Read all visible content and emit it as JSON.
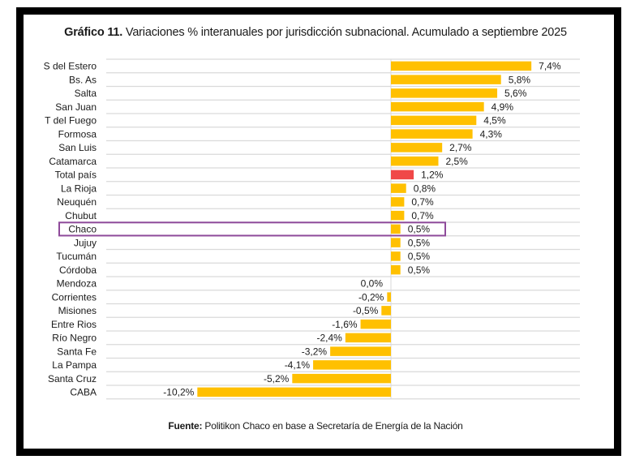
{
  "chart_data": {
    "type": "bar",
    "orientation": "horizontal",
    "title_bold": "Gráfico 11.",
    "title_rest": " Variaciones % interanuales por jurisdicción subnacional. Acumulado a septiembre 2025",
    "xlabel": "",
    "ylabel": "",
    "xlim": [
      -10.2,
      9.9
    ],
    "grid": true,
    "categories": [
      "S del Estero",
      "Bs. As",
      "Salta",
      "San Juan",
      "T del Fuego",
      "Formosa",
      "San Luis",
      "Catamarca",
      "Total país",
      "La Rioja",
      "Neuquén",
      "Chubut",
      "Chaco",
      "Jujuy",
      "Tucumán",
      "Córdoba",
      "Mendoza",
      "Corrientes",
      "Misiones",
      "Entre Rios",
      "Río Negro",
      "Santa Fe",
      "La Pampa",
      "Santa Cruz",
      "CABA"
    ],
    "values": [
      7.4,
      5.8,
      5.6,
      4.9,
      4.5,
      4.3,
      2.7,
      2.5,
      1.2,
      0.8,
      0.7,
      0.7,
      0.5,
      0.5,
      0.5,
      0.5,
      0.0,
      -0.2,
      -0.5,
      -1.6,
      -2.4,
      -3.2,
      -4.1,
      -5.2,
      -10.2
    ],
    "labels": [
      "7,4%",
      "5,8%",
      "5,6%",
      "4,9%",
      "4,5%",
      "4,3%",
      "2,7%",
      "2,5%",
      "1,2%",
      "0,8%",
      "0,7%",
      "0,7%",
      "0,5%",
      "0,5%",
      "0,5%",
      "0,5%",
      "0,0%",
      "-0,2%",
      "-0,5%",
      "-1,6%",
      "-2,4%",
      "-3,2%",
      "-4,1%",
      "-5,2%",
      "-10,2%"
    ],
    "highlight_category": "Total país",
    "outlined_category": "Chaco",
    "colors": {
      "bar": "#FFC000",
      "highlight": "#F04848",
      "outline": "#8E4A9A",
      "grid": "#DADADA",
      "frame": "#000000"
    }
  },
  "footer": {
    "bold": "Fuente:",
    "rest": " Politikon Chaco en base a Secretaría de Energía de la Nación"
  }
}
